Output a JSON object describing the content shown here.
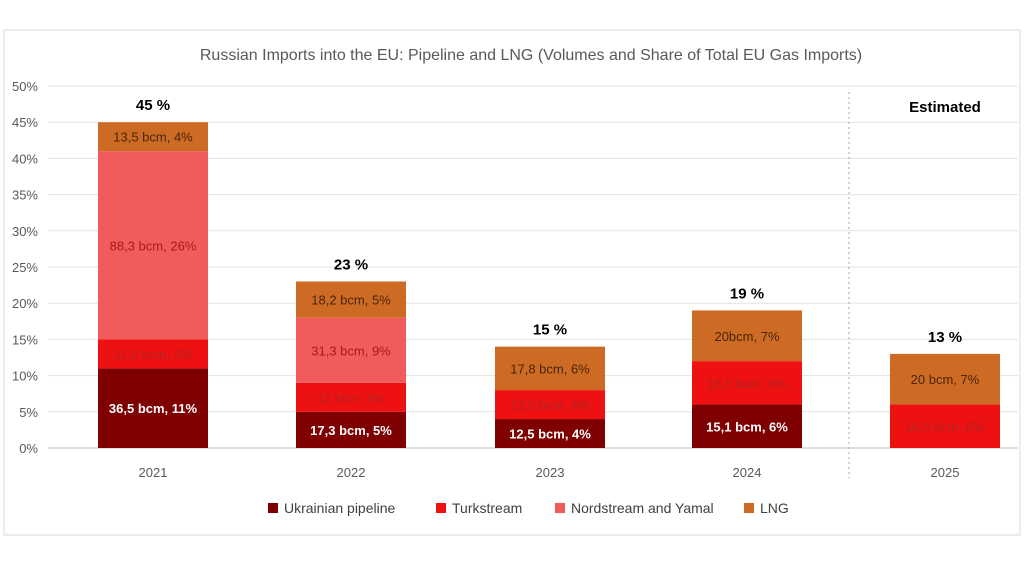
{
  "chart_data": {
    "type": "bar",
    "stacked": true,
    "title": "Russian Imports into the EU: Pipeline and LNG (Volumes and Share of Total EU Gas Imports)",
    "categories": [
      "2021",
      "2022",
      "2023",
      "2024",
      "2025"
    ],
    "ylim": [
      0,
      50
    ],
    "yticks": [
      "0%",
      "5%",
      "10%",
      "15%",
      "20%",
      "25%",
      "30%",
      "35%",
      "40%",
      "45%",
      "50%"
    ],
    "grid": true,
    "legend_position": "bottom",
    "totals": [
      "45 %",
      "23 %",
      "15 %",
      "19 %",
      "13 %"
    ],
    "estimated_label": "Estimated",
    "series": [
      {
        "name": "Ukrainian pipeline",
        "color": "#7f0000",
        "values": [
          11,
          5,
          4,
          6,
          0
        ],
        "labels": [
          "36,5 bcm, 11%",
          "17,3 bcm, 5%",
          "12,5 bcm, 4%",
          "15,1 bcm, 6%",
          ""
        ],
        "label_color": "#ffffff"
      },
      {
        "name": "Turkstream",
        "color": "#ee1111",
        "values": [
          4,
          4,
          4,
          6,
          6
        ],
        "labels": [
          "11,9 bcm, 4%",
          "12 bcm, 4%",
          "12,6 bcm, 4%",
          "16,5 bcm, 6%",
          "16,5 bcm, 6%"
        ],
        "label_color": "#b22222"
      },
      {
        "name": "Nordstream and Yamal",
        "color": "#f25b5b",
        "values": [
          26,
          9,
          0,
          0,
          0
        ],
        "labels": [
          "88,3 bcm, 26%",
          "31,3 bcm, 9%",
          "",
          "",
          ""
        ],
        "label_color": "#a51c1c"
      },
      {
        "name": "LNG",
        "color": "#cd6b24",
        "values": [
          4,
          5,
          6,
          7,
          7
        ],
        "labels": [
          "13,5 bcm, 4%",
          "18,2 bcm, 5%",
          "17,8 bcm, 6%",
          "20bcm, 7%",
          "20 bcm, 7%"
        ],
        "label_color": "#4a2508"
      }
    ]
  }
}
